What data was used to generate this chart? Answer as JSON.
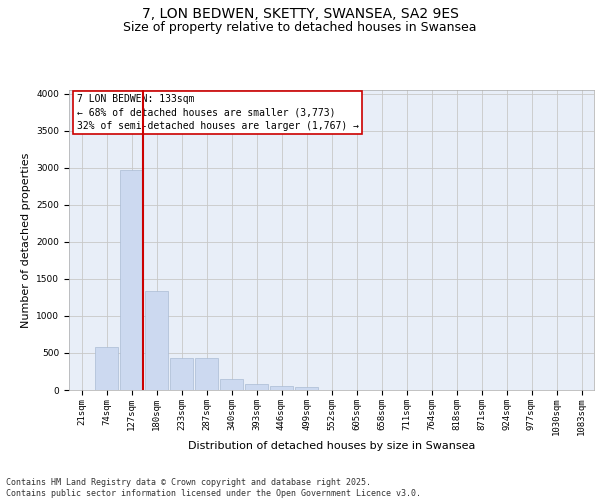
{
  "title1": "7, LON BEDWEN, SKETTY, SWANSEA, SA2 9ES",
  "title2": "Size of property relative to detached houses in Swansea",
  "xlabel": "Distribution of detached houses by size in Swansea",
  "ylabel": "Number of detached properties",
  "categories": [
    "21sqm",
    "74sqm",
    "127sqm",
    "180sqm",
    "233sqm",
    "287sqm",
    "340sqm",
    "393sqm",
    "446sqm",
    "499sqm",
    "552sqm",
    "605sqm",
    "658sqm",
    "711sqm",
    "764sqm",
    "818sqm",
    "871sqm",
    "924sqm",
    "977sqm",
    "1030sqm",
    "1083sqm"
  ],
  "values": [
    0,
    580,
    2970,
    1340,
    430,
    430,
    155,
    75,
    55,
    45,
    5,
    2,
    1,
    1,
    0,
    0,
    0,
    0,
    0,
    0,
    0
  ],
  "bar_color": "#ccd9f0",
  "bar_edge_color": "#aabbd4",
  "bar_linewidth": 0.5,
  "grid_color": "#c8c8c8",
  "background_color": "#e8eef8",
  "annotation_text": "7 LON BEDWEN: 133sqm\n← 68% of detached houses are smaller (3,773)\n32% of semi-detached houses are larger (1,767) →",
  "annotation_box_color": "#ffffff",
  "annotation_box_edge_color": "#cc0000",
  "vline_color": "#cc0000",
  "ylim": [
    0,
    4050
  ],
  "yticks": [
    0,
    500,
    1000,
    1500,
    2000,
    2500,
    3000,
    3500,
    4000
  ],
  "footnote": "Contains HM Land Registry data © Crown copyright and database right 2025.\nContains public sector information licensed under the Open Government Licence v3.0.",
  "title_fontsize": 10,
  "subtitle_fontsize": 9,
  "tick_fontsize": 6.5,
  "ylabel_fontsize": 8,
  "xlabel_fontsize": 8,
  "annotation_fontsize": 7,
  "footnote_fontsize": 6
}
